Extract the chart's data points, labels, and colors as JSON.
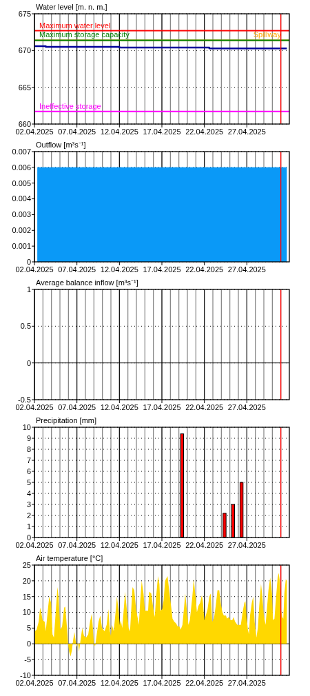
{
  "chart_data": [
    {
      "type": "step",
      "title": "Water level [m. n. m.]",
      "xlim": [
        "2025-04-02",
        "2025-05-02"
      ],
      "xticks": [
        {
          "value": "2025-04-02",
          "label": "02.04.2025"
        },
        {
          "value": "2025-04-07",
          "label": "07.04.2025"
        },
        {
          "value": "2025-04-12",
          "label": "12.04.2025"
        },
        {
          "value": "2025-04-17",
          "label": "17.04.2025"
        },
        {
          "value": "2025-04-22",
          "label": "22.04.2025"
        },
        {
          "value": "2025-04-27",
          "label": "27.04.2025"
        }
      ],
      "ylim": [
        660,
        675
      ],
      "yticks": [
        660,
        665,
        670,
        675
      ],
      "grid": true,
      "series": [
        {
          "color": "#000099",
          "x": [
            "2025-04-02T00:00",
            "2025-04-03T08:00",
            "2025-04-12T00:00",
            "2025-04-22T14:00",
            "2025-05-01T17:00"
          ],
          "values": [
            670.6,
            670.5,
            670.4,
            670.3,
            670.3
          ]
        }
      ],
      "ref_lines": [
        {
          "axis": "y",
          "value": 672.7,
          "label": "Maximum water level",
          "color": "#ff0000"
        },
        {
          "axis": "y",
          "value": 671.4,
          "label": "Maximum storage capacity",
          "color": "#008000"
        },
        {
          "axis": "y",
          "value": 671.4,
          "label": "Spillway",
          "color": "#ffa500"
        },
        {
          "axis": "y",
          "value": 661.7,
          "label": "Ineffective storage",
          "color": "#ff00ff"
        },
        {
          "axis": "x",
          "value": "2025-05-01",
          "color": "#ff0000"
        }
      ]
    },
    {
      "type": "area",
      "title": "Outflow [m³s⁻¹]",
      "xlim": [
        "2025-04-02",
        "2025-05-02"
      ],
      "xticks": [
        {
          "value": "2025-04-02",
          "label": "02.04.2025"
        },
        {
          "value": "2025-04-07",
          "label": "07.04.2025"
        },
        {
          "value": "2025-04-12",
          "label": "12.04.2025"
        },
        {
          "value": "2025-04-17",
          "label": "17.04.2025"
        },
        {
          "value": "2025-04-22",
          "label": "22.04.2025"
        },
        {
          "value": "2025-04-27",
          "label": "27.04.2025"
        }
      ],
      "ylim": [
        0,
        0.007
      ],
      "yticks": [
        0,
        0.001,
        0.002,
        0.003,
        0.004,
        0.005,
        0.006,
        0.007
      ],
      "grid": true,
      "series": [
        {
          "color": "#0a99f7",
          "x": [
            "2025-04-02T08:00",
            "2025-05-01T17:00"
          ],
          "values": [
            0.006,
            0.006
          ]
        }
      ],
      "ref_lines": [
        {
          "axis": "x",
          "value": "2025-05-01",
          "color": "#ff0000"
        }
      ]
    },
    {
      "type": "line",
      "title": "Average balance inflow [m³s⁻¹]",
      "xlim": [
        "2025-04-02",
        "2025-05-02"
      ],
      "xticks": [
        {
          "value": "2025-04-02",
          "label": "02.04.2025"
        },
        {
          "value": "2025-04-07",
          "label": "07.04.2025"
        },
        {
          "value": "2025-04-12",
          "label": "12.04.2025"
        },
        {
          "value": "2025-04-17",
          "label": "17.04.2025"
        },
        {
          "value": "2025-04-22",
          "label": "22.04.2025"
        },
        {
          "value": "2025-04-27",
          "label": "27.04.2025"
        }
      ],
      "ylim": [
        -0.5,
        1
      ],
      "yticks": [
        -0.5,
        0,
        0.5,
        1
      ],
      "grid": true,
      "ref_lines": [
        {
          "axis": "x",
          "value": "2025-05-01",
          "color": "#ff0000"
        }
      ]
    },
    {
      "type": "bar",
      "title": "Precipitation [mm]",
      "xlim": [
        "2025-04-02",
        "2025-05-02"
      ],
      "xticks": [
        {
          "value": "2025-04-02",
          "label": "02.04.2025"
        },
        {
          "value": "2025-04-07",
          "label": "07.04.2025"
        },
        {
          "value": "2025-04-12",
          "label": "12.04.2025"
        },
        {
          "value": "2025-04-17",
          "label": "17.04.2025"
        },
        {
          "value": "2025-04-22",
          "label": "22.04.2025"
        },
        {
          "value": "2025-04-27",
          "label": "27.04.2025"
        }
      ],
      "ylim": [
        0,
        10
      ],
      "yticks": [
        0,
        1,
        2,
        3,
        4,
        5,
        6,
        7,
        8,
        9,
        10
      ],
      "grid": true,
      "series": [
        {
          "color": "#ff0000",
          "x": [
            "2025-04-19T09:00",
            "2025-04-24T09:00",
            "2025-04-25T09:00",
            "2025-04-26T09:00"
          ],
          "values": [
            9.4,
            2.2,
            3,
            5
          ]
        }
      ],
      "ref_lines": [
        {
          "axis": "x",
          "value": "2025-05-01",
          "color": "#ff0000"
        }
      ]
    },
    {
      "type": "area",
      "title": "Air temperature [°C]",
      "xlim": [
        "2025-04-02",
        "2025-05-02"
      ],
      "xticks": [
        {
          "value": "2025-04-02",
          "label": "02.04.2025"
        },
        {
          "value": "2025-04-07",
          "label": "07.04.2025"
        },
        {
          "value": "2025-04-12",
          "label": "12.04.2025"
        },
        {
          "value": "2025-04-17",
          "label": "17.04.2025"
        },
        {
          "value": "2025-04-22",
          "label": "22.04.2025"
        },
        {
          "value": "2025-04-27",
          "label": "27.04.2025"
        }
      ],
      "ylim": [
        -10,
        25
      ],
      "yticks": [
        -10,
        -5,
        0,
        5,
        10,
        15,
        20,
        25
      ],
      "grid": true,
      "series": [
        {
          "color": "#ffd800",
          "x": [
            "2025-04-02T01:00",
            "2025-04-02T06:00",
            "2025-04-02T12:00",
            "2025-04-02T16:00",
            "2025-04-02T19:00",
            "2025-04-02T23:00",
            "2025-04-03T05:00",
            "2025-04-03T08:00",
            "2025-04-03T15:00",
            "2025-04-03T18:00",
            "2025-04-03T23:00",
            "2025-04-04T03:00",
            "2025-04-04T07:00",
            "2025-04-04T12:00",
            "2025-04-04T17:00",
            "2025-04-04T20:00",
            "2025-04-05T01:00",
            "2025-04-05T06:00",
            "2025-04-05T12:00",
            "2025-04-05T15:00",
            "2025-04-05T20:00",
            "2025-04-05T23:00",
            "2025-04-06T02:00",
            "2025-04-06T06:00",
            "2025-04-06T10:00",
            "2025-04-06T13:00",
            "2025-04-06T17:00",
            "2025-04-06T21:00",
            "2025-04-07T00:00",
            "2025-04-07T03:00",
            "2025-04-07T06:00",
            "2025-04-07T10:00",
            "2025-04-07T15:00",
            "2025-04-07T20:00",
            "2025-04-08T02:00",
            "2025-04-08T08:00",
            "2025-04-08T13:00",
            "2025-04-08T18:00",
            "2025-04-08T21:00",
            "2025-04-09T00:00",
            "2025-04-09T04:00",
            "2025-04-09T08:00",
            "2025-04-09T13:00",
            "2025-04-09T18:00",
            "2025-04-09T23:00",
            "2025-04-10T06:00",
            "2025-04-10T12:00",
            "2025-04-10T17:00",
            "2025-04-10T21:00",
            "2025-04-11T00:00",
            "2025-04-11T03:00",
            "2025-04-11T08:00",
            "2025-04-11T14:00",
            "2025-04-11T17:00",
            "2025-04-11T22:00",
            "2025-04-12T01:00",
            "2025-04-12T04:00",
            "2025-04-12T08:00",
            "2025-04-12T13:00",
            "2025-04-12T16:00",
            "2025-04-12T20:00",
            "2025-04-13T02:00",
            "2025-04-13T06:00",
            "2025-04-13T10:00",
            "2025-04-13T13:00",
            "2025-04-13T18:00",
            "2025-04-13T23:00",
            "2025-04-14T04:00",
            "2025-04-14T07:00",
            "2025-04-14T11:00",
            "2025-04-14T15:00",
            "2025-04-14T20:00",
            "2025-04-15T00:00",
            "2025-04-15T06:00",
            "2025-04-15T09:00",
            "2025-04-15T12:00",
            "2025-04-15T18:00",
            "2025-04-16T00:00",
            "2025-04-16T04:00",
            "2025-04-16T07:00",
            "2025-04-16T13:00",
            "2025-04-16T17:00",
            "2025-04-16T20:00",
            "2025-04-17T01:00",
            "2025-04-17T05:00",
            "2025-04-17T09:00",
            "2025-04-17T16:00",
            "2025-04-17T21:00",
            "2025-04-18T02:00",
            "2025-04-18T06:00",
            "2025-04-18T11:00",
            "2025-04-18T16:00",
            "2025-04-18T21:00",
            "2025-04-19T02:00",
            "2025-04-19T05:00",
            "2025-04-19T10:00",
            "2025-04-19T15:00",
            "2025-04-19T18:00",
            "2025-04-19T23:00",
            "2025-04-20T03:00",
            "2025-04-20T07:00",
            "2025-04-20T14:00",
            "2025-04-20T18:00",
            "2025-04-20T23:00",
            "2025-04-21T03:00",
            "2025-04-21T07:00",
            "2025-04-21T12:00",
            "2025-04-21T17:00",
            "2025-04-21T20:00",
            "2025-04-22T00:00",
            "2025-04-22T04:00",
            "2025-04-22T09:00",
            "2025-04-22T14:00",
            "2025-04-22T18:00",
            "2025-04-22T22:00",
            "2025-04-23T03:00",
            "2025-04-23T08:00",
            "2025-04-23T13:00",
            "2025-04-23T18:00",
            "2025-04-23T22:00",
            "2025-04-24T03:00",
            "2025-04-24T07:00",
            "2025-04-24T13:00",
            "2025-04-24T16:00",
            "2025-04-24T21:00",
            "2025-04-25T02:00",
            "2025-04-25T07:00",
            "2025-04-25T10:00",
            "2025-04-25T15:00",
            "2025-04-25T21:00",
            "2025-04-26T04:00",
            "2025-04-26T07:00",
            "2025-04-26T12:00",
            "2025-04-26T17:00",
            "2025-04-26T20:00",
            "2025-04-26T23:00",
            "2025-04-27T03:00",
            "2025-04-27T06:00",
            "2025-04-27T09:00",
            "2025-04-27T14:00",
            "2025-04-27T18:00",
            "2025-04-27T22:00",
            "2025-04-28T03:00",
            "2025-04-28T07:00",
            "2025-04-28T11:00",
            "2025-04-28T16:00",
            "2025-04-28T19:00",
            "2025-04-29T00:00",
            "2025-04-29T05:00",
            "2025-04-29T08:00",
            "2025-04-29T13:00",
            "2025-04-29T18:00",
            "2025-04-29T23:00",
            "2025-04-30T02:00",
            "2025-04-30T06:00",
            "2025-04-30T10:00",
            "2025-04-30T15:00",
            "2025-04-30T18:00",
            "2025-04-30T21:00",
            "2025-05-01T01:00",
            "2025-05-01T04:00",
            "2025-05-01T07:00",
            "2025-05-01T10:00",
            "2025-05-01T14:00",
            "2025-05-01T17:00"
          ],
          "values": [
            4,
            4.5,
            7,
            11.5,
            10,
            7.5,
            7,
            4,
            12,
            15,
            13,
            3,
            2,
            10,
            18,
            15,
            4.5,
            5.5,
            11.5,
            11.8,
            5,
            0,
            -2.5,
            -4,
            -2,
            1,
            3.7,
            0.5,
            -1,
            0.5,
            -2.5,
            1,
            5,
            2.5,
            2,
            3,
            7,
            9.5,
            5,
            -0.5,
            -0.5,
            3,
            7,
            9,
            5,
            4,
            6,
            11,
            4,
            2.5,
            6,
            4,
            11,
            15,
            10,
            6,
            7.5,
            5,
            12,
            16.5,
            12,
            5,
            4,
            12,
            18,
            17,
            11,
            8,
            6,
            14,
            20,
            16,
            10.5,
            10.5,
            10.5,
            16.5,
            16,
            11,
            8.5,
            14,
            21.5,
            19,
            10.5,
            11,
            14,
            20,
            21.5,
            16.5,
            12,
            8,
            7,
            6.5,
            5.5,
            5.5,
            4.5,
            6,
            12,
            16,
            10,
            6,
            7.5,
            15,
            20.5,
            15,
            10,
            12,
            13,
            15.5,
            13,
            7.5,
            9,
            11,
            15,
            16,
            7,
            8,
            12,
            17,
            17,
            13,
            10,
            9,
            9,
            8,
            8.5,
            7.5,
            7.5,
            8.5,
            7,
            6,
            6,
            6,
            10,
            13,
            13.5,
            9,
            4.5,
            3,
            9,
            13,
            15,
            7,
            2,
            5,
            12,
            19,
            16,
            9,
            6,
            10,
            17,
            21,
            16,
            7.5,
            8,
            14,
            21,
            22.5,
            20,
            10.5,
            8.5,
            8,
            16,
            20.5,
            20
          ]
        }
      ],
      "ref_lines": [
        {
          "axis": "x",
          "value": "2025-05-01",
          "color": "#ff0000"
        }
      ]
    }
  ]
}
